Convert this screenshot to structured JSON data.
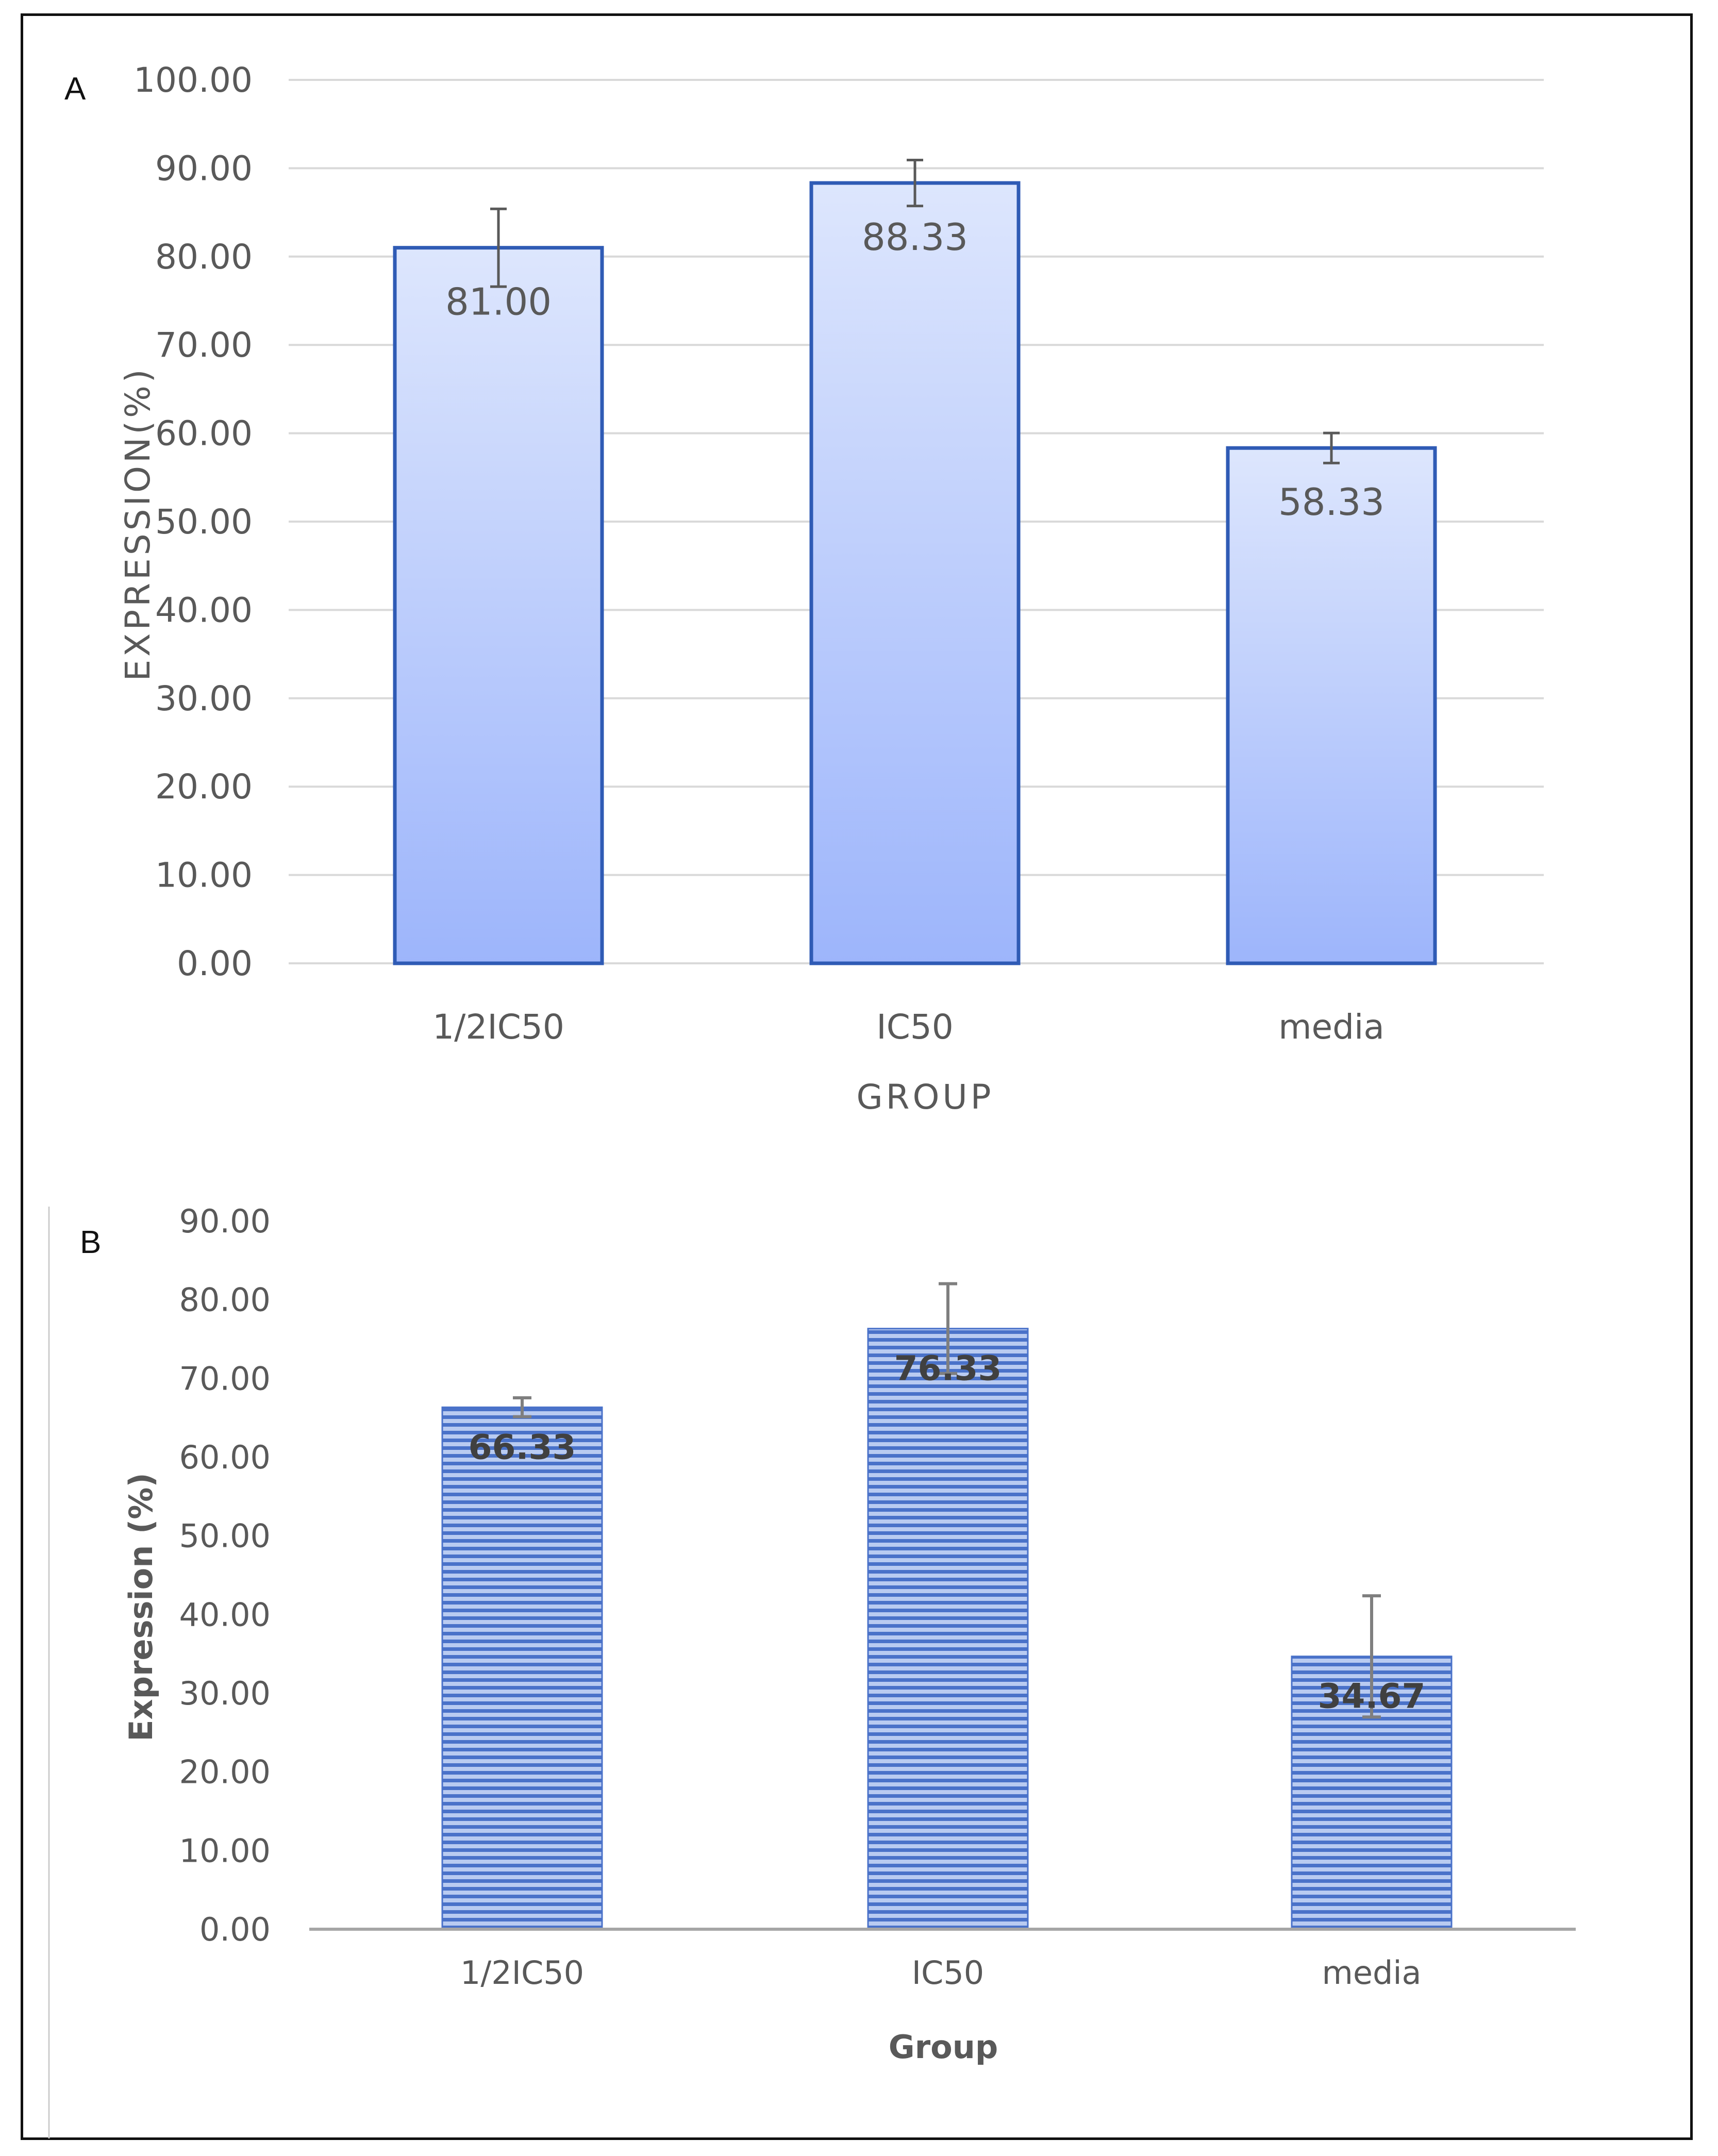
{
  "chart_data": [
    {
      "panel": "A",
      "type": "bar",
      "categories": [
        "1/2IC50",
        "IC50",
        "media"
      ],
      "values": [
        81.0,
        88.33,
        58.33
      ],
      "error": [
        4.4,
        2.6,
        1.7
      ],
      "data_labels": [
        "81.00",
        "88.33",
        "58.33"
      ],
      "xlabel": "GROUP",
      "ylabel": "EXPRESSION(%)",
      "ylim": [
        0,
        100
      ],
      "yticks": [
        "0.00",
        "10.00",
        "20.00",
        "30.00",
        "40.00",
        "50.00",
        "60.00",
        "70.00",
        "80.00",
        "90.00",
        "100.00"
      ],
      "grid": true,
      "colors": {
        "bar_top": "#dde6fd",
        "bar_bottom": "#9db5fb",
        "bar_border": "#2f5bb5",
        "grid": "#d9d9d9",
        "error": "#595959"
      }
    },
    {
      "panel": "B",
      "type": "bar",
      "categories": [
        "1/2IC50",
        "IC50",
        "media"
      ],
      "values": [
        66.33,
        76.33,
        34.67
      ],
      "error": [
        1.2,
        5.7,
        7.7
      ],
      "data_labels": [
        "66.33",
        "76.33",
        "34.67"
      ],
      "xlabel": "Group",
      "ylabel": "Expression (%)",
      "ylim": [
        0,
        90
      ],
      "yticks": [
        "0.00",
        "10.00",
        "20.00",
        "30.00",
        "40.00",
        "50.00",
        "60.00",
        "70.00",
        "80.00",
        "90.00"
      ],
      "grid": false,
      "colors": {
        "stripe_dark": "#4a72c9",
        "stripe_light": "#b9cbf1",
        "axis": "#a6a6a6",
        "error": "#7f7f7f"
      }
    }
  ]
}
